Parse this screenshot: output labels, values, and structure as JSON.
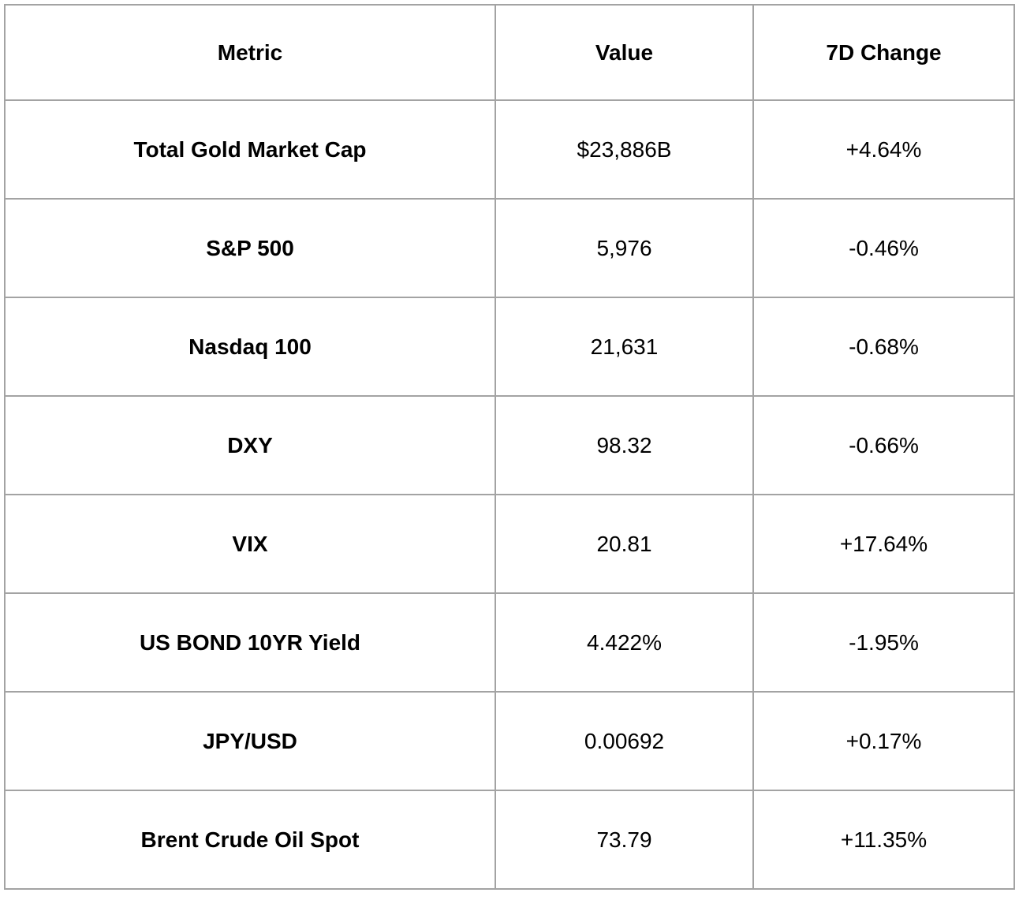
{
  "chart_data": {
    "type": "table",
    "columns": [
      "Metric",
      "Value",
      "7D Change"
    ],
    "rows": [
      [
        "Total Gold Market Cap",
        "$23,886B",
        "+4.64%"
      ],
      [
        "S&P 500",
        "5,976",
        "-0.46%"
      ],
      [
        "Nasdaq 100",
        "21,631",
        "-0.68%"
      ],
      [
        "DXY",
        "98.32",
        "-0.66%"
      ],
      [
        "VIX",
        "20.81",
        "+17.64%"
      ],
      [
        "US BOND 10YR Yield",
        "4.422%",
        "-1.95%"
      ],
      [
        "JPY/USD",
        "0.00692",
        "+0.17%"
      ],
      [
        "Brent Crude Oil Spot",
        "73.79",
        "+11.35%"
      ]
    ],
    "layout": {
      "header_bold": true,
      "metric_column_bold": true,
      "text_align": "center"
    }
  },
  "colors": {
    "border": "#a3a3a3",
    "text": "#000000",
    "background": "#ffffff"
  }
}
